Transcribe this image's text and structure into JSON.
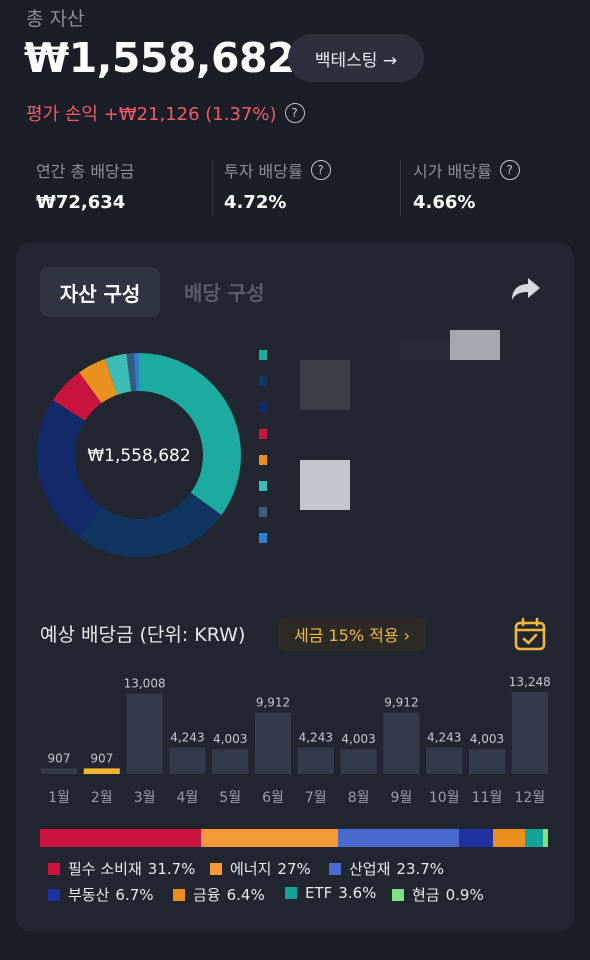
{
  "header": {
    "total_label": "총 자산",
    "total_value": "₩1,558,682",
    "backtest_label": "백테스팅 →",
    "pnl_text": "평가 손익 +₩21,126 (1.37%)"
  },
  "stats": [
    {
      "label": "연간 총 배당금",
      "value": "₩72,634",
      "help": false
    },
    {
      "label": "투자 배당률",
      "value": "4.72%",
      "help": true
    },
    {
      "label": "시가 배당률",
      "value": "4.66%",
      "help": true
    }
  ],
  "tabs": {
    "asset": "자산 구성",
    "dividend": "배당 구성"
  },
  "donut": {
    "center_label": "₩1,558,682",
    "segments": [
      {
        "value": 35,
        "color": "#1cab9e"
      },
      {
        "value": 25,
        "color": "#0f3560"
      },
      {
        "value": 24,
        "color": "#12296a"
      },
      {
        "value": 6,
        "color": "#c8143e"
      },
      {
        "value": 4.5,
        "color": "#e9901e"
      },
      {
        "value": 3.5,
        "color": "#3bbdb5"
      },
      {
        "value": 1.2,
        "color": "#3a5a80"
      },
      {
        "value": 0.8,
        "color": "#2f7fd0"
      }
    ]
  },
  "legend_colors": [
    "#1cab9e",
    "#0f3560",
    "#12296a",
    "#c8143e",
    "#e9901e",
    "#3bbdb5",
    "#3a5a80",
    "#2f7fd0"
  ],
  "dividends": {
    "title": "예상 배당금 (단위: KRW)",
    "tax_badge": "세금 15% 적용 ›"
  },
  "chart_data": {
    "type": "bar",
    "categories": [
      "1월",
      "2월",
      "3월",
      "4월",
      "5월",
      "6월",
      "7월",
      "8월",
      "9월",
      "10월",
      "11월",
      "12월"
    ],
    "values": [
      907,
      907,
      13008,
      4243,
      4003,
      9912,
      4243,
      4003,
      9912,
      4243,
      4003,
      13248
    ],
    "data_labels": [
      "907",
      "907",
      "13,008",
      "4,243",
      "4,003",
      "9,912",
      "4,243",
      "4,003",
      "9,912",
      "4,243",
      "4,003",
      "13,248"
    ],
    "highlight_index": 1,
    "highlight_color": "#f4b42d",
    "bar_color": "#333b4b"
  },
  "sectors": [
    {
      "name": "필수 소비재",
      "pct": 31.7,
      "pct_text": "31.7%",
      "color": "#c8143e"
    },
    {
      "name": "에너지",
      "pct": 27,
      "pct_text": "27%",
      "color": "#f59a3a"
    },
    {
      "name": "산업재",
      "pct": 23.7,
      "pct_text": "23.7%",
      "color": "#4a6ad0"
    },
    {
      "name": "부동산",
      "pct": 6.7,
      "pct_text": "6.7%",
      "color": "#1f32a0"
    },
    {
      "name": "금융",
      "pct": 6.4,
      "pct_text": "6.4%",
      "color": "#e9901e"
    },
    {
      "name": "ETF",
      "pct": 3.6,
      "pct_text": "3.6%",
      "color": "#12a597"
    },
    {
      "name": "현금",
      "pct": 0.9,
      "pct_text": "0.9%",
      "color": "#7fe08a"
    }
  ]
}
